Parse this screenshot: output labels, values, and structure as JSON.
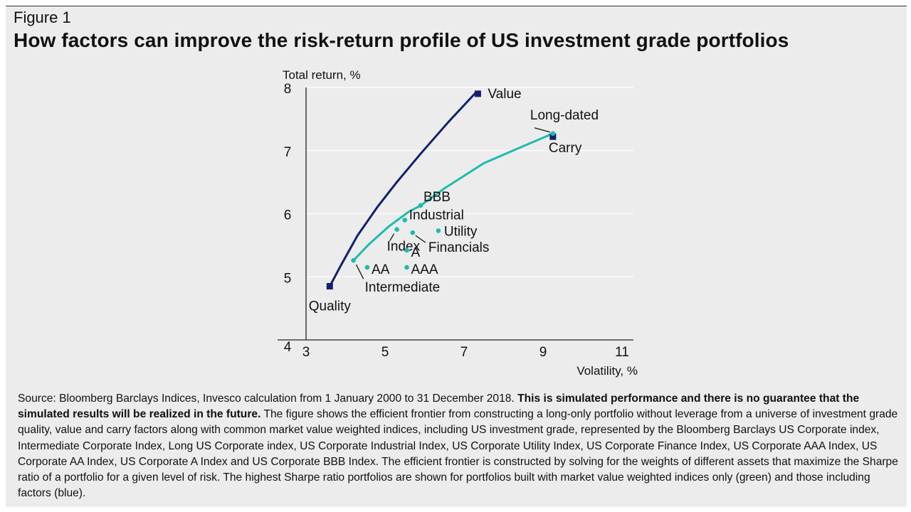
{
  "figure_label": "Figure 1",
  "title": "How factors can improve the risk-return profile of US investment grade portfolios",
  "source": {
    "intro": "Source: Bloomberg Barclays Indices, Invesco calculation from 1 January 2000 to 31 December 2018.",
    "bold": "This is simulated performance and there is no guarantee that the simulated results will be realized in the future.",
    "rest": "The figure shows the efficient frontier from constructing a long-only portfolio without leverage from a universe of investment grade quality, value and carry factors along with common market value weighted indices, including US investment grade, represented by the Bloomberg Barclays US Corporate index, Intermediate Corporate Index, Long US Corporate index, US Corporate Industrial Index, US Corporate Utility Index, US Corporate Finance Index, US Corporate AAA Index, US Corporate AA Index, US Corporate A Index and US Corporate BBB Index. The efficient frontier is constructed by solving for the weights of different assets that maximize the Sharpe ratio of a portfolio for a given level of risk. The highest Sharpe ratio portfolios are shown for portfolios built with market value weighted indices only (green) and those including factors (blue)."
  },
  "chart_data": {
    "type": "scatter",
    "ylabel": "Total return, %",
    "xlabel": "Volatility, %",
    "xlim": [
      3,
      11
    ],
    "ylim": [
      4,
      8
    ],
    "xticks": [
      3,
      5,
      7,
      9,
      11
    ],
    "yticks": [
      4,
      5,
      6,
      7,
      8
    ],
    "grid": true,
    "colors": {
      "factors": "#13206b",
      "indices": "#1fbab0",
      "axis": "#222222",
      "grid": "#ffffff"
    },
    "series": [
      {
        "name": "Frontier including factors (blue)",
        "line": [
          [
            3.6,
            4.85
          ],
          [
            3.9,
            5.2
          ],
          [
            4.3,
            5.65
          ],
          [
            4.8,
            6.1
          ],
          [
            5.3,
            6.5
          ],
          [
            5.9,
            6.95
          ],
          [
            6.6,
            7.45
          ],
          [
            7.3,
            7.92
          ]
        ]
      },
      {
        "name": "Frontier market value weighted indices only (green)",
        "line": [
          [
            4.2,
            5.26
          ],
          [
            4.6,
            5.52
          ],
          [
            5.1,
            5.8
          ],
          [
            5.6,
            6.03
          ],
          [
            5.9,
            6.13
          ],
          [
            6.5,
            6.4
          ],
          [
            7.5,
            6.8
          ],
          [
            8.5,
            7.07
          ],
          [
            9.25,
            7.27
          ]
        ]
      }
    ],
    "points": [
      {
        "label": "Value",
        "x": 7.35,
        "y": 7.9,
        "marker": "square",
        "color": "#13206b"
      },
      {
        "label": "Quality",
        "x": 3.6,
        "y": 4.85,
        "marker": "square",
        "color": "#13206b"
      },
      {
        "label": "Carry",
        "x": 9.25,
        "y": 7.22,
        "marker": "square",
        "color": "#13206b"
      },
      {
        "label": "Long-dated",
        "x": 9.25,
        "y": 7.27,
        "marker": "dot",
        "color": "#1fbab0"
      },
      {
        "label": "BBB",
        "x": 5.9,
        "y": 6.13,
        "marker": "dot",
        "color": "#1fbab0"
      },
      {
        "label": "Industrial",
        "x": 5.5,
        "y": 5.9,
        "marker": "dot",
        "color": "#1fbab0"
      },
      {
        "label": "Utility",
        "x": 6.35,
        "y": 5.73,
        "marker": "dot",
        "color": "#1fbab0"
      },
      {
        "label": "Index",
        "x": 5.3,
        "y": 5.75,
        "marker": "dot",
        "color": "#1fbab0"
      },
      {
        "label": "Financials",
        "x": 5.7,
        "y": 5.7,
        "marker": "dot",
        "color": "#1fbab0"
      },
      {
        "label": "A",
        "x": 5.55,
        "y": 5.42,
        "marker": "dot",
        "color": "#1fbab0"
      },
      {
        "label": "AA",
        "x": 4.55,
        "y": 5.15,
        "marker": "dot",
        "color": "#1fbab0"
      },
      {
        "label": "AAA",
        "x": 5.55,
        "y": 5.15,
        "marker": "dot",
        "color": "#1fbab0"
      },
      {
        "label": "Intermediate",
        "x": 4.2,
        "y": 5.26,
        "marker": "dot",
        "color": "#1fbab0"
      }
    ]
  }
}
